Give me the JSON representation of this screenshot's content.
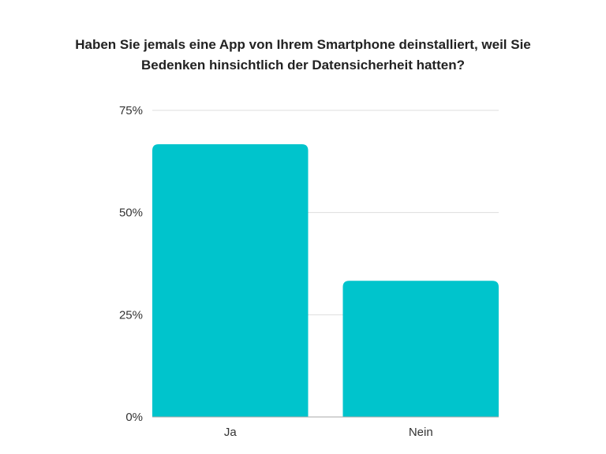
{
  "title_lines": [
    "Haben Sie jemals eine App von Ihrem Smartphone deinstalliert, weil Sie",
    "Bedenken hinsichtlich der Datensicherheit hatten?"
  ],
  "colors": {
    "bar": "#00c4cc",
    "grid": "#dddddd",
    "axis": "#aaaaaa"
  },
  "chart_data": {
    "type": "bar",
    "title": "Haben Sie jemals eine App von Ihrem Smartphone deinstalliert, weil Sie Bedenken hinsichtlich der Datensicherheit hatten?",
    "categories": [
      "Ja",
      "Nein"
    ],
    "values": [
      66.7,
      33.3
    ],
    "unit": "%",
    "ylim": [
      0,
      75
    ],
    "yticks": [
      0,
      25,
      50,
      75
    ],
    "ytick_labels": [
      "0%",
      "25%",
      "50%",
      "75%"
    ],
    "grid": true,
    "legend": "none"
  }
}
